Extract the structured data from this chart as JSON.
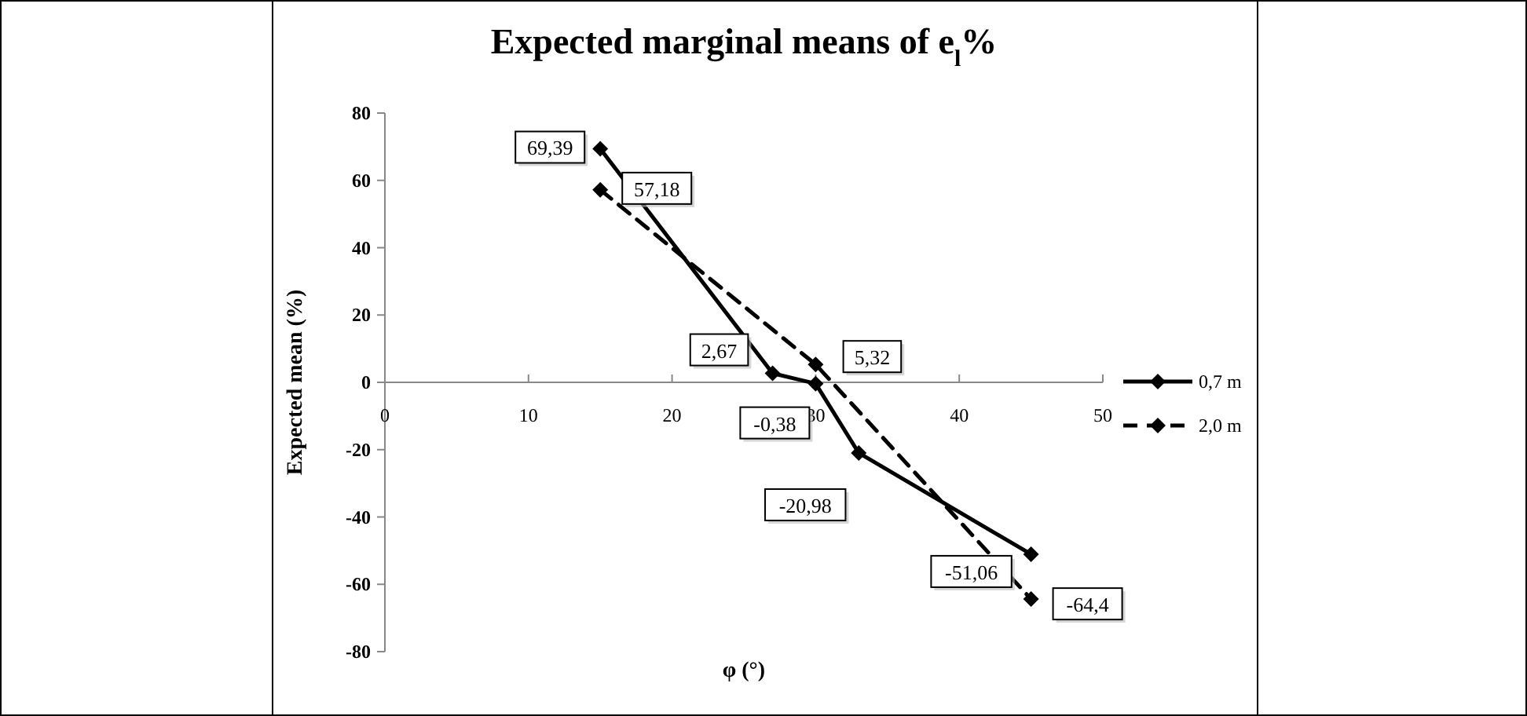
{
  "chart_data": {
    "type": "line",
    "title": "Expected marginal means of e$_{l}$%",
    "xlabel": "φ (°)",
    "ylabel": "Expected mean (%)",
    "xlim": [
      0,
      50
    ],
    "xticks": [
      0,
      10,
      20,
      30,
      40,
      50
    ],
    "ylim": [
      -80,
      80
    ],
    "yticks": [
      -80,
      -60,
      -40,
      -20,
      0,
      20,
      40,
      60,
      80
    ],
    "grid": false,
    "legend": "right",
    "marker": "diamond",
    "series": [
      {
        "name": "0,7 m",
        "color": "#000000",
        "line_style": "solid",
        "x": [
          15,
          27,
          30,
          33,
          45
        ],
        "values": [
          69.39,
          2.67,
          -0.38,
          -20.98,
          -51.06
        ],
        "value_labels": [
          "69,39",
          "2,67",
          "-0,38",
          "-20,98",
          "-51,06"
        ]
      },
      {
        "name": "2,0 m",
        "color": "#000000",
        "line_style": "dashed",
        "x": [
          15,
          30,
          45
        ],
        "values": [
          57.18,
          5.32,
          -64.4
        ],
        "value_labels": [
          "57,18",
          "5,32",
          "-64,4"
        ]
      }
    ]
  }
}
